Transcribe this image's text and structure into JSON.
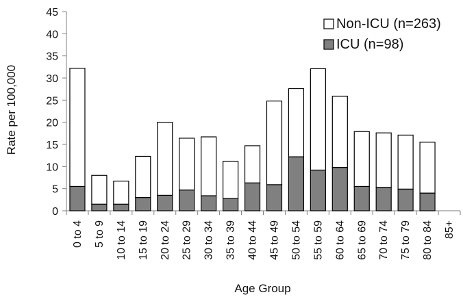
{
  "chart_data": {
    "type": "bar",
    "stacked": true,
    "title": "",
    "xlabel": "Age Group",
    "ylabel": "Rate per 100,000",
    "ylim": [
      0,
      45
    ],
    "yticks": [
      0,
      5,
      10,
      15,
      20,
      25,
      30,
      35,
      40,
      45
    ],
    "grid": false,
    "legend_position": "top-right",
    "categories": [
      "0 to 4",
      "5 to 9",
      "10 to 14",
      "15 to 19",
      "20 to 24",
      "25 to 29",
      "30 to 34",
      "35 to 39",
      "40 to 44",
      "45 to 49",
      "50 to 54",
      "55 to 59",
      "60 to 64",
      "65 to 69",
      "70 to 74",
      "75 to 79",
      "80 to 84",
      "85+"
    ],
    "series": [
      {
        "name": "ICU (n=98)",
        "color": "#808080",
        "values": [
          5.5,
          1.5,
          1.5,
          3.0,
          3.5,
          4.7,
          3.4,
          2.8,
          6.3,
          5.9,
          12.2,
          9.2,
          9.8,
          5.5,
          5.3,
          4.9,
          4.0,
          0
        ]
      },
      {
        "name": "Non-ICU (n=263)",
        "color": "#ffffff",
        "values": [
          26.7,
          6.5,
          5.2,
          9.3,
          16.5,
          11.7,
          13.3,
          8.4,
          8.4,
          18.9,
          15.4,
          22.9,
          16.1,
          12.4,
          12.3,
          12.2,
          11.5,
          0
        ]
      }
    ],
    "legend": [
      {
        "label": "Non-ICU (n=263)",
        "color": "#ffffff"
      },
      {
        "label": "ICU (n=98)",
        "color": "#808080"
      }
    ]
  }
}
